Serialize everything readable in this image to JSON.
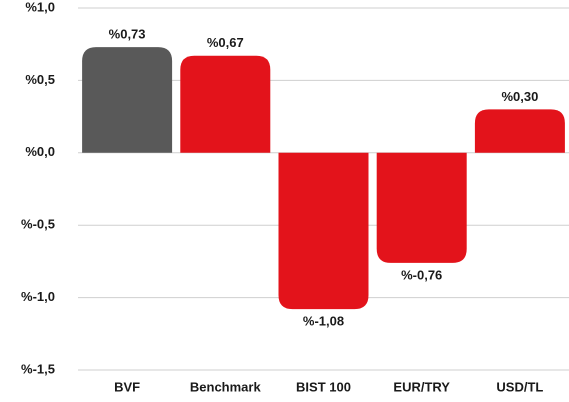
{
  "chart_data": {
    "type": "bar",
    "categories": [
      "BVF",
      "Benchmark",
      "BIST 100",
      "EUR/TRY",
      "USD/TL"
    ],
    "values": [
      0.73,
      0.67,
      -1.08,
      -0.76,
      0.3
    ],
    "value_labels": [
      "%0,73",
      "%0,67",
      "%-1,08",
      "%-0,76",
      "%0,30"
    ],
    "colors": [
      "#595959",
      "#e3131b",
      "#e3131b",
      "#e3131b",
      "#e3131b"
    ],
    "ylim": [
      -1.5,
      1.0
    ],
    "yticks": [
      {
        "value": -1.5,
        "label": "%-1,5"
      },
      {
        "value": -1.0,
        "label": "%-1,0"
      },
      {
        "value": -0.5,
        "label": "%-0,5"
      },
      {
        "value": 0,
        "label": "%0,0"
      },
      {
        "value": 0.5,
        "label": "%0,5"
      },
      {
        "value": 1.0,
        "label": "%1,0"
      }
    ],
    "grid": true
  }
}
